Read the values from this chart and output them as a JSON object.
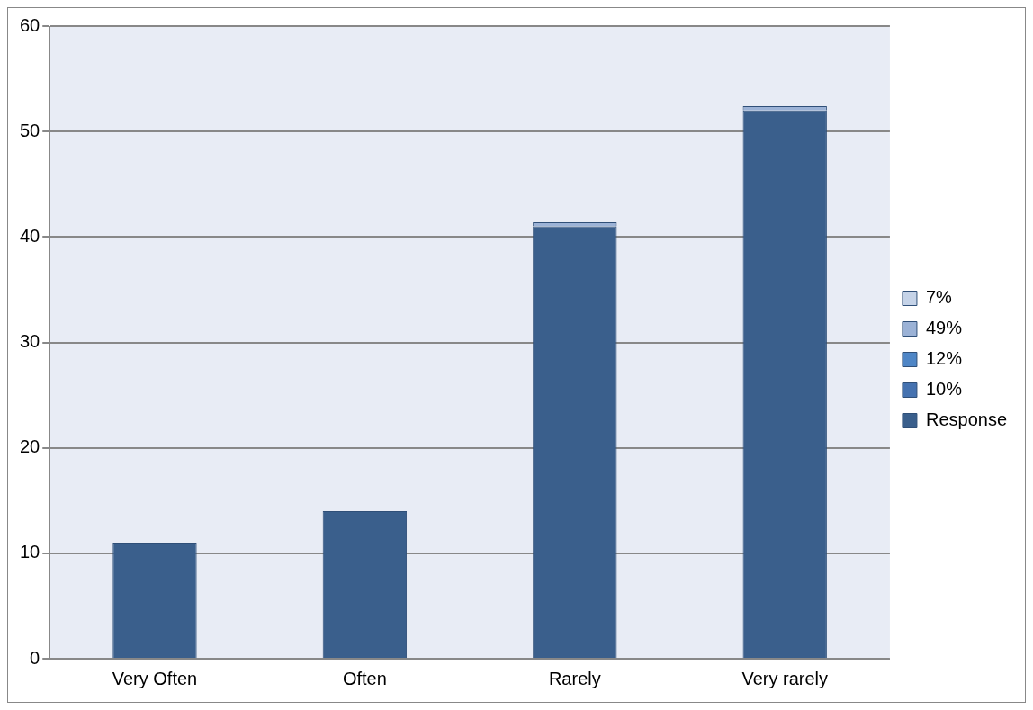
{
  "chart_data": {
    "type": "bar",
    "stacked": true,
    "categories": [
      "Very Often",
      "Often",
      "Rarely",
      "Very rarely"
    ],
    "series": [
      {
        "name": "Response",
        "color": "#3a5f8c",
        "values": [
          11,
          14,
          41,
          52
        ]
      },
      {
        "name": "10%",
        "color": "#4572b0",
        "values": [
          null,
          null,
          null,
          null
        ]
      },
      {
        "name": "12%",
        "color": "#4f86c6",
        "values": [
          null,
          null,
          null,
          null
        ]
      },
      {
        "name": "49%",
        "color": "#9bb2d6",
        "values": [
          null,
          null,
          0.4,
          0.4
        ]
      },
      {
        "name": "7%",
        "color": "#c5d3e8",
        "values": [
          null,
          null,
          null,
          null
        ]
      }
    ],
    "ylim": [
      0,
      60
    ],
    "yticks": [
      0,
      10,
      20,
      30,
      40,
      50,
      60
    ],
    "grid": "y",
    "legend": "right"
  }
}
